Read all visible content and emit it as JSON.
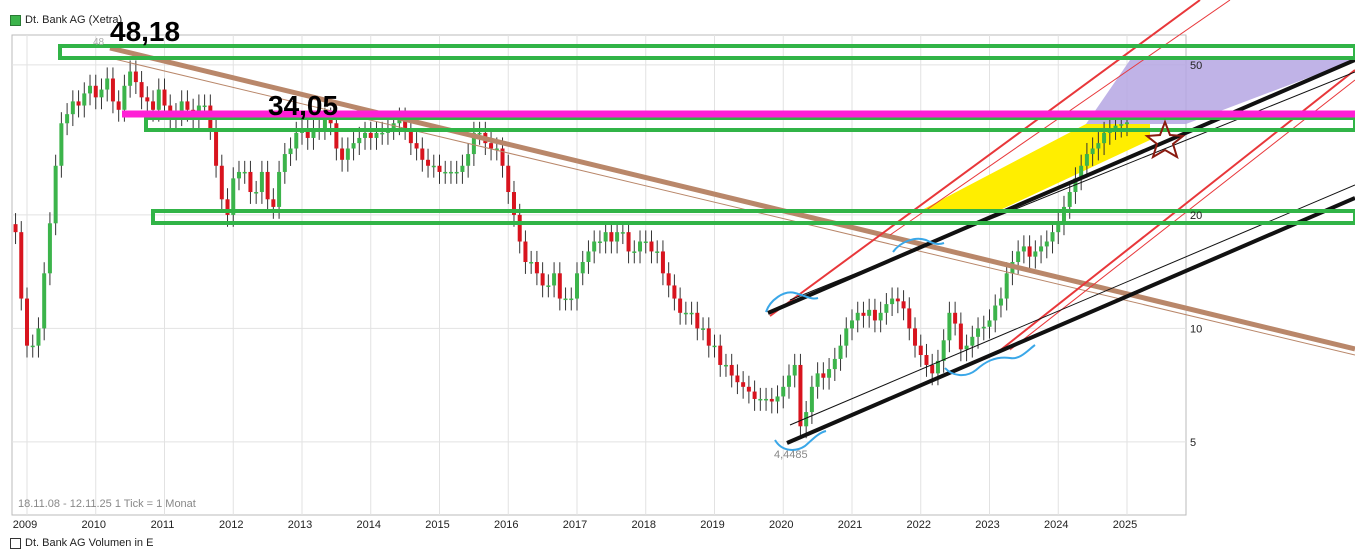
{
  "legend": {
    "label": "Dt. Bank AG (Xetra)"
  },
  "legend2": {
    "label": "Dt. Bank AG Volumen in E"
  },
  "range_info": "18.11.08 - 12.11.25   1 Tick = 1 Monat",
  "annotations": {
    "high_label": "48,18",
    "mid_label": "34,05",
    "low_label": "4,4485",
    "high_small": "48"
  },
  "colors": {
    "up": "#3cb44b",
    "down": "#d8141e",
    "wick": "#333333",
    "resistance": "#31b447",
    "magenta": "#ff1fd6",
    "downtrend": "#b9876a",
    "channel_black": "#111111",
    "channel_red": "#e8373a",
    "yellow": "#ffee00",
    "lavender": "#b5a6e3",
    "loop": "#3aa7e8",
    "grid": "#e2e2e2"
  },
  "chart_data": {
    "type": "candlestick",
    "x_labels": [
      "2009",
      "2010",
      "2011",
      "2012",
      "2013",
      "2014",
      "2015",
      "2016",
      "2017",
      "2018",
      "2019",
      "2020",
      "2021",
      "2022",
      "2023",
      "2024",
      "2025"
    ],
    "y_ticks": [
      {
        "value": 50,
        "label": "50"
      },
      {
        "value": 20,
        "label": "20"
      },
      {
        "value": 10,
        "label": "10"
      },
      {
        "value": 5,
        "label": "5"
      }
    ],
    "y_scale": "log",
    "ylim": [
      3.2,
      60
    ],
    "xlim": [
      "2008-11",
      "2025-11"
    ],
    "horizontal_levels": [
      48.18,
      34.05
    ],
    "grid": true,
    "monthly_close": [
      18,
      12,
      9,
      9,
      10,
      14,
      19,
      27,
      35,
      37,
      40,
      39,
      42,
      44,
      41,
      43,
      46,
      40,
      38,
      44,
      48,
      45,
      41,
      40,
      38,
      43,
      39,
      36,
      37,
      40,
      38,
      36,
      39,
      39,
      34,
      27,
      22,
      20,
      25,
      26,
      26,
      23,
      23,
      26,
      22,
      21,
      26,
      29,
      30,
      33,
      34,
      32,
      34,
      34,
      36,
      35,
      30,
      28,
      30,
      31,
      32,
      33,
      32,
      33,
      33,
      34,
      35,
      36,
      34,
      31,
      30,
      28,
      27,
      27,
      26,
      26,
      26,
      26,
      27,
      29,
      33,
      33,
      31,
      30,
      30,
      27,
      23,
      20,
      17,
      15,
      15,
      14,
      13,
      13,
      14,
      12,
      12,
      12,
      14,
      15,
      16,
      17,
      17,
      18,
      17,
      18,
      18,
      16,
      16,
      17,
      17,
      16,
      16,
      14,
      13,
      12,
      11,
      11,
      11,
      10,
      10,
      9,
      9,
      8,
      8,
      7.5,
      7.2,
      7,
      6.8,
      6.5,
      6.5,
      6.5,
      6.4,
      6.6,
      7,
      7.5,
      8,
      5.5,
      6,
      7,
      7.6,
      7.4,
      7.8,
      8.3,
      9,
      10,
      10.5,
      11,
      10.8,
      11.2,
      10.5,
      11,
      11.6,
      12,
      11.8,
      11.3,
      10,
      9,
      8.5,
      8,
      7.6,
      8.2,
      9.3,
      11,
      10.3,
      8.8,
      9,
      9.5,
      10,
      10.1,
      10.5,
      11.5,
      12,
      14,
      15,
      16,
      16.5,
      15.5,
      16,
      16.5,
      17,
      18,
      19,
      21,
      23,
      25,
      27,
      29,
      30,
      31,
      33,
      34,
      34.5,
      34.8,
      35.2
    ]
  }
}
